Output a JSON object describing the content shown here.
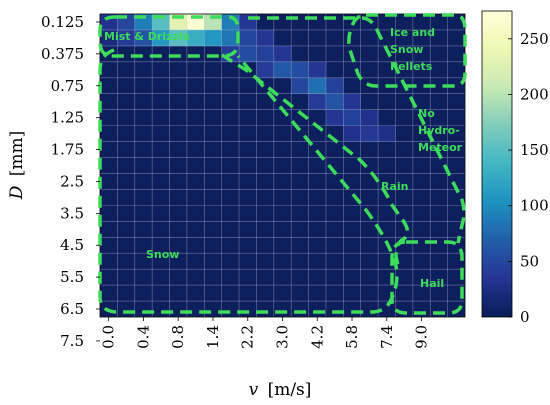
{
  "chart_data": {
    "type": "heatmap",
    "xlabel_var": "v",
    "xlabel_unit": "[m/s]",
    "ylabel_var": "D",
    "ylabel_unit": "[mm]",
    "x_ticks": [
      "0.0",
      "0.4",
      "0.8",
      "1.4",
      "2.2",
      "3.0",
      "4.2",
      "5.8",
      "7.4",
      "9.0"
    ],
    "y_ticks": [
      "0.125",
      "0.375",
      "0.75",
      "1.25",
      "1.75",
      "2.5",
      "3.5",
      "4.5",
      "5.5",
      "6.5",
      "7.5"
    ],
    "n_cols": 21,
    "n_rows": 19,
    "colorbar": {
      "min": 0,
      "max": 275,
      "ticks": [
        "0",
        "50",
        "100",
        "150",
        "200",
        "250"
      ],
      "tick_values": [
        0,
        50,
        100,
        150,
        200,
        250
      ]
    },
    "colormap": [
      "#ffffd9",
      "#edf8b1",
      "#c7e9b4",
      "#7fcdbb",
      "#41b6c4",
      "#1d91c0",
      "#225ea8",
      "#253494",
      "#081d58"
    ],
    "cells": [
      [
        0,
        0,
        30
      ],
      [
        0,
        1,
        50
      ],
      [
        0,
        2,
        90
      ],
      [
        0,
        3,
        150
      ],
      [
        0,
        4,
        230
      ],
      [
        0,
        5,
        270
      ],
      [
        0,
        6,
        200
      ],
      [
        0,
        7,
        90
      ],
      [
        0,
        8,
        35
      ],
      [
        1,
        0,
        20
      ],
      [
        1,
        1,
        40
      ],
      [
        1,
        2,
        60
      ],
      [
        1,
        3,
        110
      ],
      [
        1,
        4,
        150
      ],
      [
        1,
        5,
        130
      ],
      [
        1,
        6,
        110
      ],
      [
        1,
        7,
        85
      ],
      [
        1,
        8,
        50
      ],
      [
        1,
        9,
        35
      ],
      [
        2,
        7,
        40
      ],
      [
        2,
        8,
        55
      ],
      [
        2,
        9,
        45
      ],
      [
        2,
        10,
        35
      ],
      [
        3,
        9,
        40
      ],
      [
        3,
        10,
        65
      ],
      [
        3,
        11,
        55
      ],
      [
        3,
        12,
        35
      ],
      [
        4,
        11,
        50
      ],
      [
        4,
        12,
        80
      ],
      [
        4,
        13,
        45
      ],
      [
        5,
        12,
        40
      ],
      [
        5,
        13,
        60
      ],
      [
        5,
        14,
        35
      ],
      [
        6,
        13,
        35
      ],
      [
        6,
        14,
        45
      ],
      [
        6,
        15,
        30
      ],
      [
        7,
        14,
        30
      ],
      [
        7,
        15,
        38
      ],
      [
        7,
        16,
        28
      ]
    ],
    "regions": [
      {
        "label": "Mist & Drizzle"
      },
      {
        "label_lines": [
          "Ice and",
          "Snow",
          "Pellets"
        ]
      },
      {
        "label_lines": [
          "No",
          "Hydro-",
          "Meteor"
        ]
      },
      {
        "label": "Rain"
      },
      {
        "label": "Snow"
      },
      {
        "label": "Hail"
      }
    ],
    "background_color": "#0e1f5e",
    "grid_color": "#b8bfd6",
    "region_color": "#3ddc5a"
  }
}
